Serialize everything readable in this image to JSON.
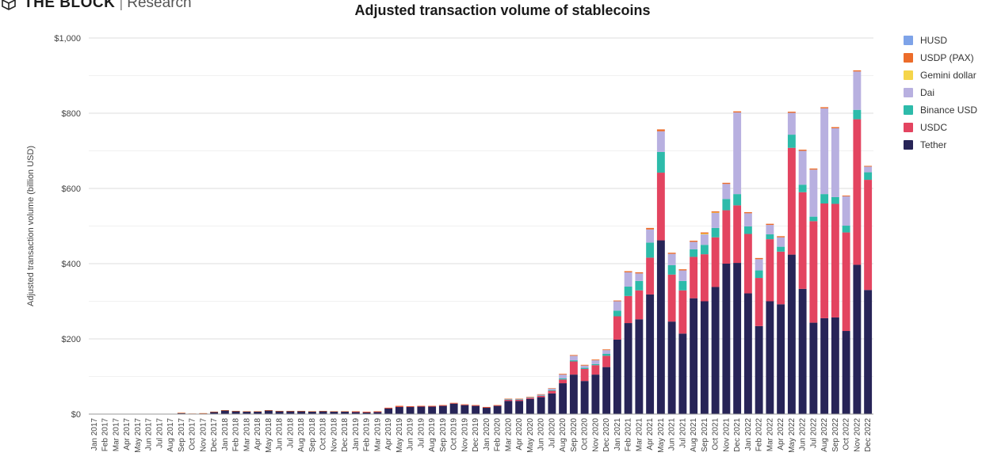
{
  "brand": {
    "name": "THE BLOCK",
    "separator": "|",
    "subtitle": "Research"
  },
  "chart_data": {
    "type": "bar",
    "stacked": true,
    "title": "Adjusted transaction volume of stablecoins",
    "xlabel": "",
    "ylabel": "Adjusted transaction volume (billion USD)",
    "ylim": [
      0,
      1000
    ],
    "yticks": [
      0,
      200,
      400,
      600,
      800,
      1000
    ],
    "ytick_labels": [
      "$0",
      "$200",
      "$400",
      "$600",
      "$800",
      "$1,000"
    ],
    "grid": true,
    "legend_position": "top-right",
    "categories": [
      "Jan 2017",
      "Feb 2017",
      "Mar 2017",
      "Apr 2017",
      "May 2017",
      "Jun 2017",
      "Jul 2017",
      "Aug 2017",
      "Sep 2017",
      "Oct 2017",
      "Nov 2017",
      "Dec 2017",
      "Jan 2018",
      "Feb 2018",
      "Mar 2018",
      "Apr 2018",
      "May 2018",
      "Jun 2018",
      "Jul 2018",
      "Aug 2018",
      "Sep 2018",
      "Oct 2018",
      "Nov 2018",
      "Dec 2018",
      "Jan 2019",
      "Feb 2019",
      "Mar 2019",
      "Apr 2019",
      "May 2019",
      "Jun 2019",
      "Jul 2019",
      "Aug 2019",
      "Sep 2019",
      "Oct 2019",
      "Nov 2019",
      "Dec 2019",
      "Jan 2020",
      "Feb 2020",
      "Mar 2020",
      "Apr 2020",
      "May 2020",
      "Jun 2020",
      "Jul 2020",
      "Aug 2020",
      "Sep 2020",
      "Oct 2020",
      "Nov 2020",
      "Dec 2020",
      "Jan 2021",
      "Feb 2021",
      "Mar 2021",
      "Apr 2021",
      "May 2021",
      "Jun 2021",
      "Jul 2021",
      "Aug 2021",
      "Sep 2021",
      "Oct 2021",
      "Nov 2021",
      "Dec 2021",
      "Jan 2022",
      "Feb 2022",
      "Mar 2022",
      "Apr 2022",
      "May 2022",
      "Jun 2022",
      "Jul 2022",
      "Aug 2022",
      "Sep 2022",
      "Oct 2022",
      "Nov 2022",
      "Dec 2022"
    ],
    "legend_order": [
      "HUSD",
      "USDP (PAX)",
      "Gemini dollar",
      "Dai",
      "Binance USD",
      "USDC",
      "Tether"
    ],
    "series": [
      {
        "name": "Tether",
        "color": "#272457",
        "values": [
          0.5,
          0.5,
          0.5,
          0.5,
          0.5,
          0.5,
          1,
          1,
          3,
          1,
          2,
          6,
          10,
          8,
          7,
          7,
          10,
          8,
          8,
          8,
          7,
          8,
          7,
          7,
          6,
          5,
          6,
          15,
          19,
          19,
          20,
          20,
          22,
          28,
          24,
          22,
          17,
          22,
          35,
          35,
          40,
          45,
          55,
          82,
          105,
          88,
          105,
          125,
          198,
          242,
          252,
          318,
          462,
          246,
          214,
          308,
          300,
          338,
          400,
          402,
          321,
          234,
          300,
          292,
          424,
          333,
          243,
          255,
          257,
          221,
          397,
          330
        ]
      },
      {
        "name": "USDC",
        "color": "#e34460",
        "values": [
          0,
          0,
          0,
          0,
          0,
          0,
          0,
          0,
          0,
          0,
          0,
          0,
          0,
          0,
          0,
          0,
          0,
          0,
          0,
          0,
          0,
          0,
          0,
          0,
          0.5,
          0.5,
          0.5,
          1,
          1,
          1,
          1,
          1,
          1,
          1,
          1,
          1,
          1,
          1,
          3,
          3,
          3,
          4,
          7,
          10,
          35,
          32,
          25,
          30,
          62,
          72,
          77,
          98,
          180,
          125,
          115,
          110,
          125,
          132,
          142,
          153,
          158,
          128,
          165,
          140,
          284,
          257,
          270,
          305,
          302,
          262,
          387,
          293
        ]
      },
      {
        "name": "Binance USD",
        "color": "#2dbbaa",
        "values": [
          0,
          0,
          0,
          0,
          0,
          0,
          0,
          0,
          0,
          0,
          0,
          0,
          0,
          0,
          0,
          0,
          0,
          0,
          0,
          0,
          0,
          0,
          0,
          0,
          0,
          0,
          0,
          0,
          0,
          0,
          0,
          0,
          0,
          0,
          0,
          0,
          0,
          0,
          1,
          1,
          1,
          1,
          2,
          3,
          3,
          3,
          3,
          5,
          15,
          25,
          25,
          40,
          55,
          25,
          25,
          20,
          25,
          25,
          30,
          30,
          20,
          20,
          13,
          13,
          35,
          20,
          12,
          25,
          18,
          18,
          25,
          20
        ]
      },
      {
        "name": "Dai",
        "color": "#b8b0e0",
        "values": [
          0,
          0,
          0,
          0,
          0,
          0,
          0,
          0,
          0,
          0,
          0,
          0,
          0,
          0,
          0,
          0,
          0,
          0,
          0,
          0,
          0,
          0,
          0,
          0,
          0,
          0,
          0,
          0,
          0,
          0,
          0,
          0,
          0,
          0,
          0,
          0,
          0,
          0,
          1,
          1,
          1,
          2,
          4,
          10,
          12,
          6,
          10,
          10,
          25,
          38,
          20,
          35,
          55,
          30,
          28,
          20,
          28,
          40,
          40,
          217,
          35,
          30,
          25,
          25,
          58,
          90,
          125,
          228,
          183,
          78,
          102,
          15
        ]
      },
      {
        "name": "Gemini dollar",
        "color": "#f5d54a",
        "values": [
          0,
          0,
          0,
          0,
          0,
          0,
          0,
          0,
          0,
          0,
          0,
          0,
          0,
          0,
          0,
          0,
          0,
          0,
          0,
          0,
          0,
          0,
          0,
          0,
          0,
          0,
          0,
          0,
          0,
          0,
          0,
          0,
          0,
          0,
          0,
          0,
          0,
          0,
          0,
          0,
          0,
          0,
          0,
          0,
          0,
          0,
          0,
          0,
          0,
          0,
          0,
          0,
          0,
          0,
          0,
          0,
          2,
          1,
          0,
          0,
          0,
          0,
          0,
          0,
          0,
          0,
          0,
          0,
          0,
          0,
          0,
          0
        ]
      },
      {
        "name": "USDP (PAX)",
        "color": "#ec6c2a",
        "values": [
          0,
          0,
          0,
          0,
          0,
          0,
          0,
          0,
          0.5,
          0.5,
          0.5,
          0.5,
          0.5,
          0.5,
          0.5,
          0.5,
          0.5,
          0.5,
          0.5,
          0.5,
          0.5,
          0.5,
          0.5,
          0.5,
          1,
          1,
          1,
          1,
          2,
          1,
          1,
          1,
          1,
          1,
          1,
          1,
          1,
          1,
          1,
          1,
          1,
          1,
          1,
          2,
          2,
          2,
          2,
          2,
          2,
          3,
          3,
          4,
          5,
          3,
          3,
          3,
          3,
          3,
          3,
          3,
          3,
          3,
          3,
          3,
          3,
          3,
          3,
          3,
          3,
          2,
          3,
          2
        ]
      },
      {
        "name": "HUSD",
        "color": "#7ea3e8",
        "values": [
          0,
          0,
          0,
          0,
          0,
          0,
          0,
          0,
          0,
          0,
          0,
          0,
          0,
          0,
          0,
          0,
          0,
          0,
          0,
          0,
          0,
          0,
          0,
          0,
          0,
          0,
          0,
          0,
          0,
          0,
          0,
          0,
          0,
          0,
          0,
          0,
          0,
          0,
          0,
          0,
          0,
          0,
          0,
          0,
          0,
          0,
          0,
          0,
          0,
          0,
          0,
          0,
          0,
          0,
          0,
          0,
          0,
          0,
          0,
          0,
          0,
          0,
          0,
          0,
          0,
          0,
          0,
          0,
          0,
          0,
          0,
          0
        ]
      }
    ]
  }
}
